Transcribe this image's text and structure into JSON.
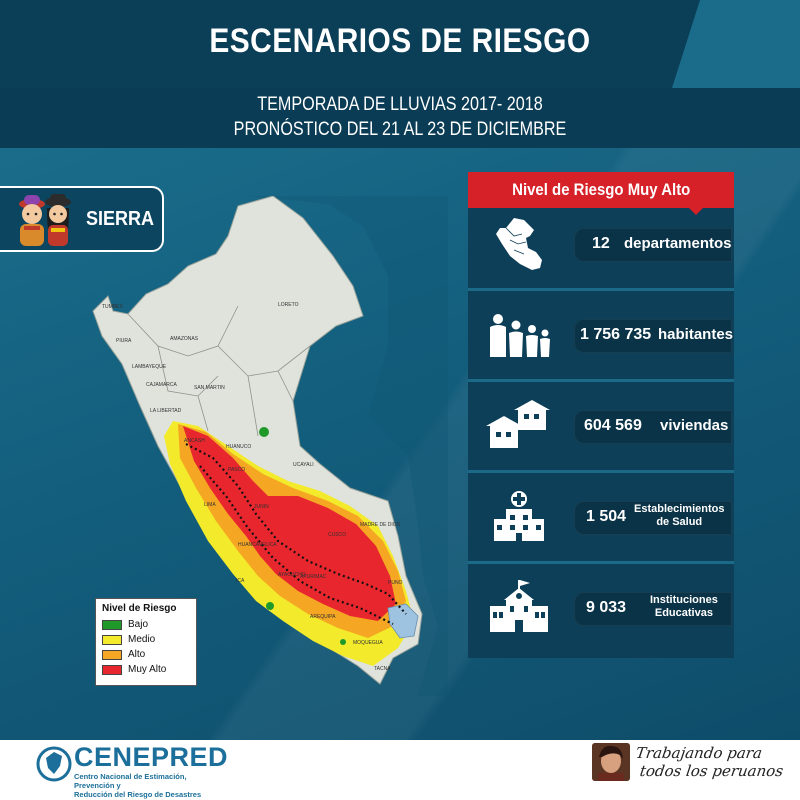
{
  "header": {
    "title": "ESCENARIOS DE RIESGO",
    "subtitle_line1": "TEMPORADA DE LLUVIAS 2017- 2018",
    "subtitle_line2": "PRONÓSTICO DEL 21 AL 23 DE DICIEMBRE"
  },
  "region": {
    "label": "SIERRA"
  },
  "map": {
    "department_labels": [
      "TUMBES",
      "PIURA",
      "AMAZONAS",
      "LAMBAYEQUE",
      "CAJAMARCA",
      "SAN MARTIN",
      "LA LIBERTAD",
      "LORETO",
      "ANCASH",
      "HUANUCO",
      "UCAYALI",
      "PASCO",
      "LIMA",
      "JUNIN",
      "HUANCAVELICA",
      "CUSCO",
      "MADRE DE DIOS",
      "ICA",
      "AYACUCHO",
      "APURIMAC",
      "PUNO",
      "AREQUIPA",
      "MOQUEGUA",
      "TACNA"
    ],
    "colors": {
      "land": "#dfe3dc",
      "bajo": "#1f9a2a",
      "medio": "#f2ea2a",
      "alto": "#f5a623",
      "muy_alto": "#e8262d"
    }
  },
  "legend": {
    "title": "Nivel de Riesgo",
    "items": [
      {
        "label": "Bajo",
        "color": "#1f9a2a"
      },
      {
        "label": "Medio",
        "color": "#f2ea2a"
      },
      {
        "label": "Alto",
        "color": "#f5a623"
      },
      {
        "label": "Muy Alto",
        "color": "#e8262d"
      }
    ]
  },
  "panel": {
    "header": "Nivel de Riesgo Muy Alto",
    "stats": [
      {
        "icon": "peru-map-icon",
        "value": "12",
        "label": "departamentos"
      },
      {
        "icon": "family-icon",
        "value": "1 756 735",
        "label": "habitantes"
      },
      {
        "icon": "houses-icon",
        "value": "604 569",
        "label": "viviendas"
      },
      {
        "icon": "hospital-icon",
        "value": "1 504",
        "label_line1": "Establecimientos",
        "label_line2": "de Salud"
      },
      {
        "icon": "school-icon",
        "value": "9 033",
        "label_line1": "Instituciones",
        "label_line2": "Educativas"
      }
    ]
  },
  "footer": {
    "org_name": "CENEPRED",
    "org_line1": "Centro Nacional de Estimación, Prevención y",
    "org_line2": "Reducción del Riesgo de Desastres",
    "slogan_line1": "Trabajando para",
    "slogan_line2": "todos los peruanos"
  }
}
